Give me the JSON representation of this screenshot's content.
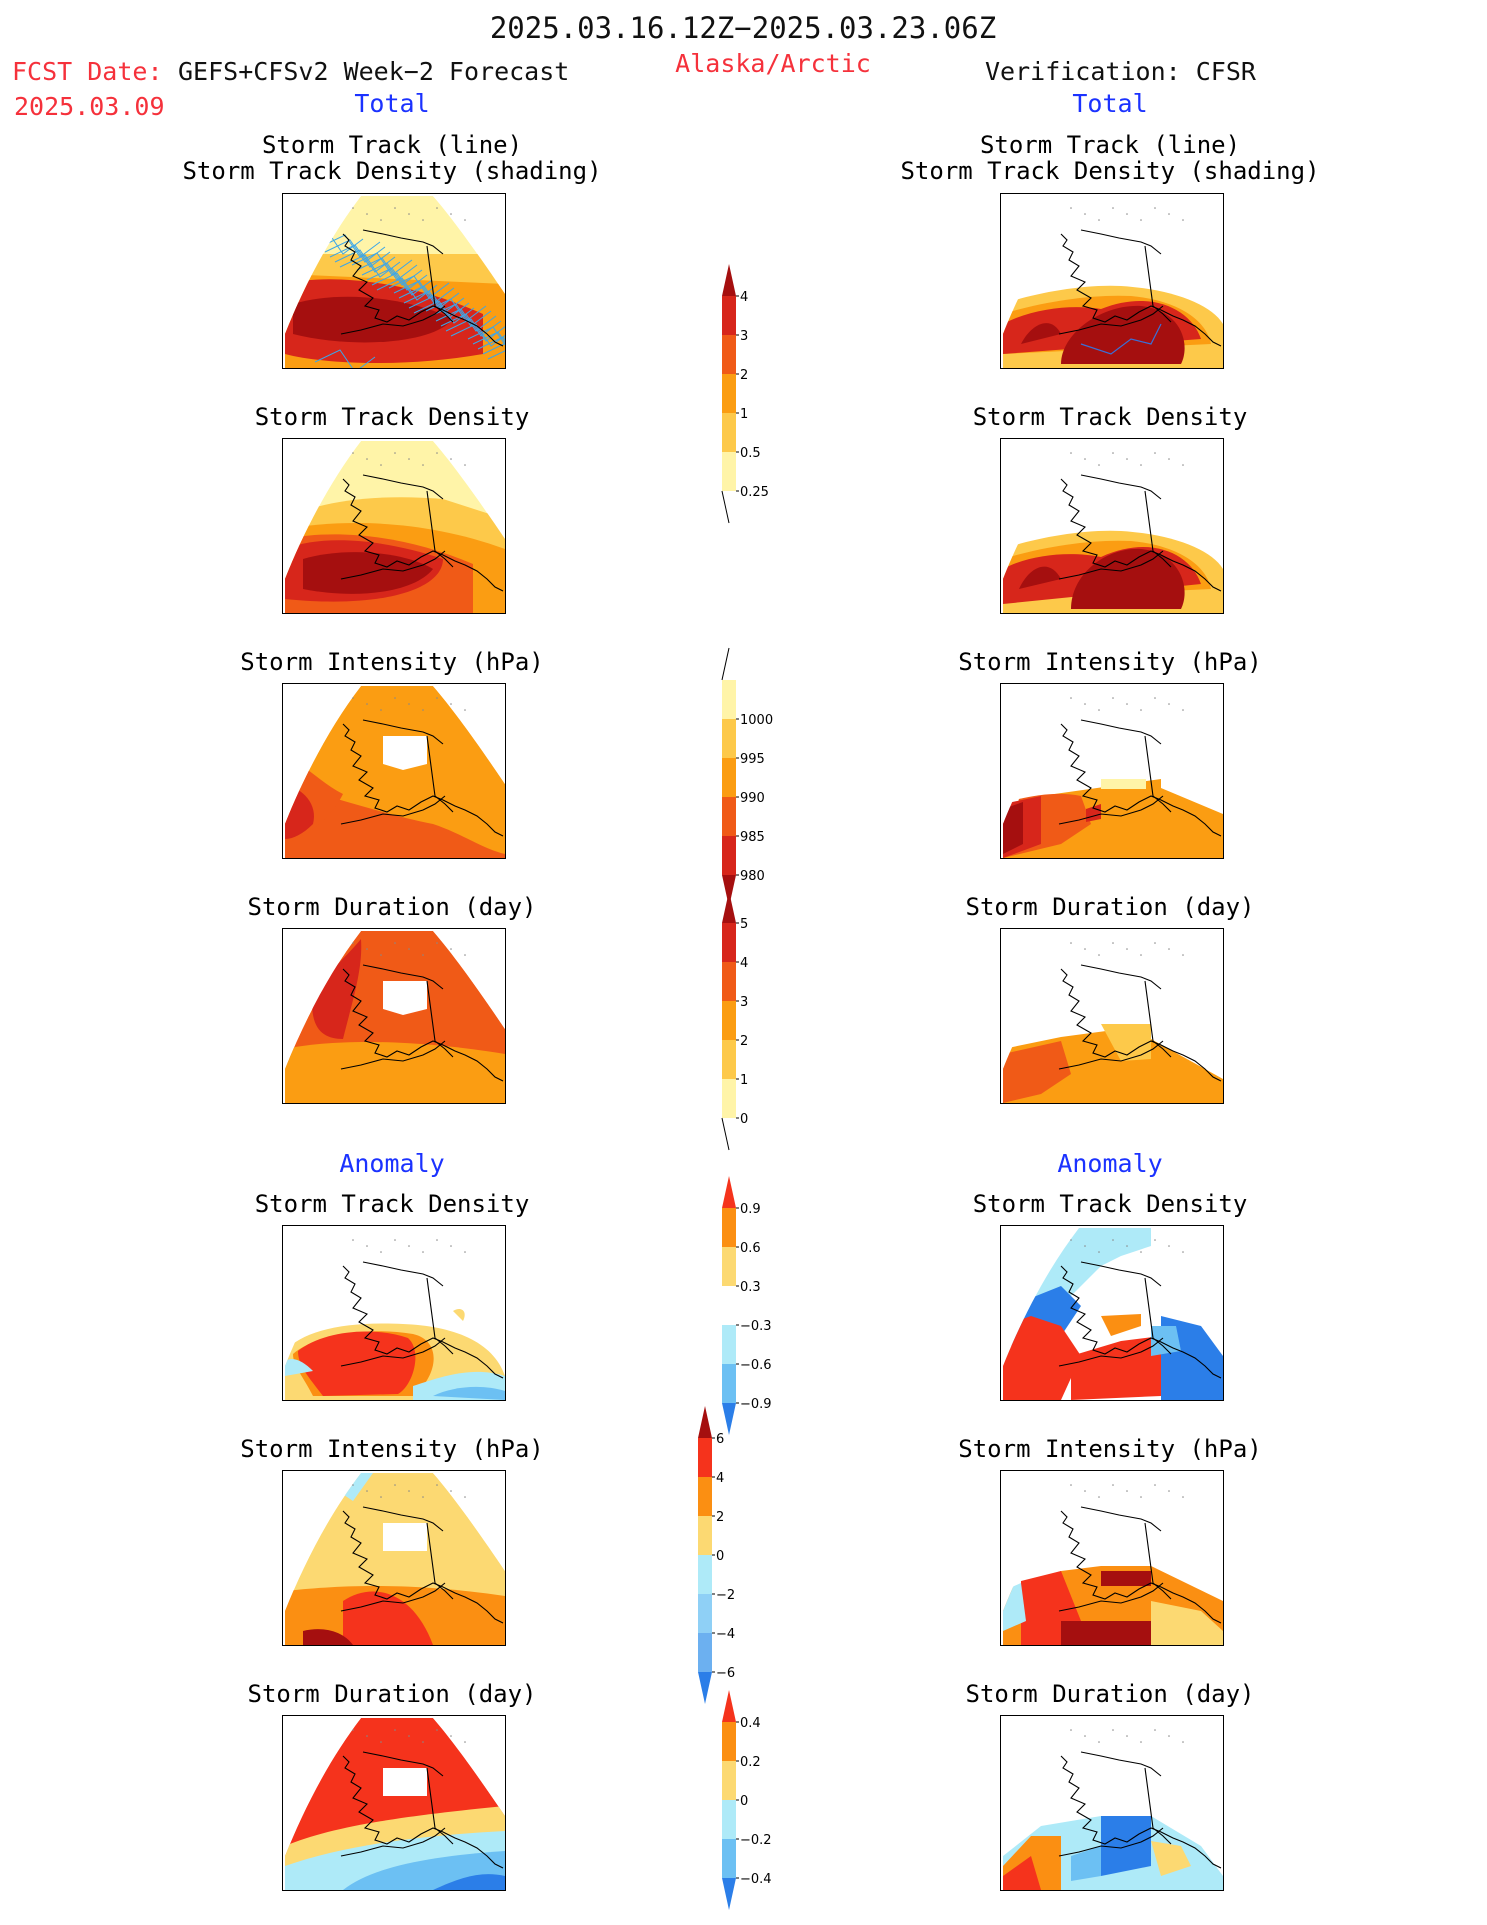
{
  "header": {
    "period": "2025.03.16.12Z−2025.03.23.06Z",
    "fcst_label": "FCST Date:",
    "fcst_model": "GEFS+CFSv2 Week−2 Forecast",
    "fcst_date": "2025.03.09",
    "region": "Alaska/Arctic",
    "verification": "Verification: CFSR",
    "total_left": "Total",
    "total_right": "Total",
    "anomaly_left": "Anomaly",
    "anomaly_right": "Anomaly"
  },
  "panel_titles": {
    "track_line": "Storm Track (line)",
    "track_density_shading": "Storm Track Density (shading)",
    "density": "Storm Track Density",
    "intensity": "Storm Intensity (hPa)",
    "duration": "Storm Duration (day)"
  },
  "colorbars": {
    "density_total": {
      "labels": [
        "4",
        "3",
        "2",
        "1",
        "0.5",
        "0.25"
      ],
      "colors": [
        "#a50f0f",
        "#d7261b",
        "#f05a17",
        "#fb9d12",
        "#fdc94a",
        "#fff4a8"
      ]
    },
    "intensity_total": {
      "labels": [
        "1000",
        "995",
        "990",
        "985",
        "980"
      ],
      "colors": [
        "#fff4a8",
        "#fdc94a",
        "#fb9d12",
        "#f05a17",
        "#d7261b",
        "#a50f0f"
      ]
    },
    "duration_total": {
      "labels": [
        "5",
        "4",
        "3",
        "2",
        "1",
        "0"
      ],
      "colors": [
        "#a50f0f",
        "#d7261b",
        "#f05a17",
        "#fb9d12",
        "#fdc94a",
        "#fff4a8"
      ]
    },
    "density_anomaly": {
      "labels": [
        "0.9",
        "0.6",
        "0.3",
        "−0.3",
        "−0.6",
        "−0.9"
      ],
      "colors": [
        "#f5331c",
        "#fb8f12",
        "#fcd972",
        "#ffffff",
        "#aeeaf8",
        "#6cc0f3",
        "#2b7ee8"
      ]
    },
    "intensity_anomaly": {
      "labels": [
        "6",
        "4",
        "2",
        "0",
        "−2",
        "−4",
        "−6"
      ],
      "colors": [
        "#a50f0f",
        "#f5331c",
        "#fb8f12",
        "#fcd972",
        "#aeeaf8",
        "#8fd0f6",
        "#6cb0f0",
        "#2b7ee8"
      ]
    },
    "duration_anomaly": {
      "labels": [
        "0.4",
        "0.2",
        "0",
        "−0.2",
        "−0.4"
      ],
      "colors": [
        "#f5331c",
        "#fb8f12",
        "#fcd972",
        "#aeeaf8",
        "#6cc0f3",
        "#2b7ee8"
      ]
    }
  },
  "colors": {
    "header_red": "#f5313b",
    "header_blue": "#1b32ff",
    "track_line": "#3ca6e8"
  }
}
